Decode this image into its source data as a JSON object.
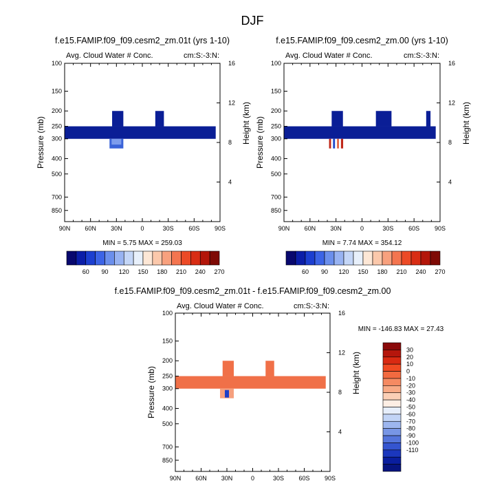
{
  "page": {
    "title": "DJF"
  },
  "chart_data": [
    {
      "type": "heatmap",
      "title": "f.e15.FAMIP.f09_f09.cesm2_zm.01t (yrs 1-10)",
      "subtitle_left": "Avg. Cloud Water # Conc.",
      "subtitle_right": "cm:S:-3:N:",
      "ylabel": "Pressure (mb)",
      "ylabel_right": "Height (km)",
      "xticks": [
        "90N",
        "60N",
        "30N",
        "0",
        "30S",
        "60S",
        "90S"
      ],
      "yticks": [
        "100",
        "150",
        "200",
        "250",
        "300",
        "400",
        "500",
        "700",
        "850"
      ],
      "yticks_right": [
        "16",
        "12",
        "8",
        "4"
      ],
      "stats": "MIN =   5.75   MAX = 259.03",
      "min": 5.75,
      "max": 259.03,
      "fill_color": "#0a1e96",
      "colorbar": {
        "labels": [
          "60",
          "90",
          "120",
          "150",
          "180",
          "210",
          "240",
          "270"
        ],
        "colors": [
          "#08086e",
          "#0b1ea8",
          "#1c3fd0",
          "#3c64e6",
          "#6b8fec",
          "#98b3f2",
          "#c4d6f7",
          "#e8f0fb",
          "#fde7d6",
          "#fbc8ab",
          "#f8a17e",
          "#f4754f",
          "#ec4a26",
          "#d82d14",
          "#b3160a",
          "#7e0a05"
        ]
      }
    },
    {
      "type": "heatmap",
      "title": "f.e15.FAMIP.f09_f09.cesm2_zm.00 (yrs 1-10)",
      "subtitle_left": "Avg. Cloud Water # Conc.",
      "subtitle_right": "cm:S:-3:N:",
      "ylabel": "Pressure (mb)",
      "ylabel_right": "Height (km)",
      "xticks": [
        "90N",
        "60N",
        "30N",
        "0",
        "30S",
        "60S",
        "90S"
      ],
      "yticks": [
        "100",
        "150",
        "200",
        "250",
        "300",
        "400",
        "500",
        "700",
        "850"
      ],
      "yticks_right": [
        "16",
        "12",
        "8",
        "4"
      ],
      "stats": "MIN =   7.74   MAX = 354.12",
      "min": 7.74,
      "max": 354.12,
      "fill_color": "#0a1e96",
      "colorbar": {
        "labels": [
          "60",
          "90",
          "120",
          "150",
          "180",
          "210",
          "240",
          "270"
        ],
        "colors": [
          "#08086e",
          "#0b1ea8",
          "#1c3fd0",
          "#3c64e6",
          "#6b8fec",
          "#98b3f2",
          "#c4d6f7",
          "#e8f0fb",
          "#fde7d6",
          "#fbc8ab",
          "#f8a17e",
          "#f4754f",
          "#ec4a26",
          "#d82d14",
          "#b3160a",
          "#7e0a05"
        ]
      }
    },
    {
      "type": "heatmap",
      "title": "f.e15.FAMIP.f09_f09.cesm2_zm.01t - f.e15.FAMIP.f09_f09.cesm2_zm.00",
      "subtitle_left": "Avg. Cloud Water # Conc.",
      "subtitle_right": "cm:S:-3:N:",
      "ylabel": "Pressure (mb)",
      "ylabel_right": "Height (km)",
      "xticks": [
        "90N",
        "60N",
        "30N",
        "0",
        "30S",
        "60S",
        "90S"
      ],
      "yticks": [
        "100",
        "150",
        "200",
        "250",
        "300",
        "400",
        "500",
        "700",
        "850"
      ],
      "yticks_right": [
        "16",
        "12",
        "8",
        "4"
      ],
      "stats": "MIN = -146.83   MAX =  27.43",
      "min": -146.83,
      "max": 27.43,
      "fill_color": "#f07048",
      "colorbar": {
        "labels": [
          "30",
          "20",
          "10",
          "0",
          "-10",
          "-20",
          "-30",
          "-40",
          "-50",
          "-60",
          "-70",
          "-80",
          "-90",
          "-100",
          "-110"
        ],
        "colors": [
          "#8b0a0a",
          "#b5160c",
          "#d92a12",
          "#f04a22",
          "#f26a40",
          "#f58a62",
          "#f8aa86",
          "#fbcfb6",
          "#fdeee4",
          "#e6eefb",
          "#c2d4f6",
          "#9db6ef",
          "#7896e6",
          "#5575dc",
          "#3555d0",
          "#1b37bd",
          "#0a1e9e",
          "#071480"
        ]
      }
    }
  ]
}
